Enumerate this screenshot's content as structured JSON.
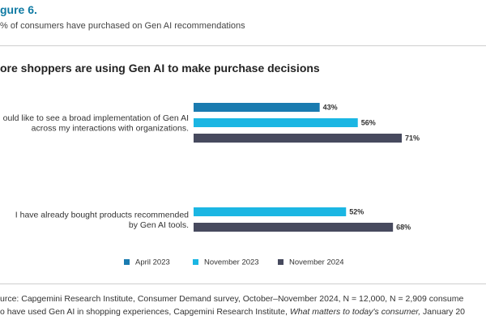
{
  "header": {
    "figure_label": "gure 6.",
    "subtitle": "% of consumers have purchased on Gen AI recommendations",
    "chart_title": "ore shoppers are using Gen AI to make purchase decisions"
  },
  "colors": {
    "april_2023": "#1a7bb0",
    "november_2023": "#1bb6e3",
    "november_2024": "#474a5e"
  },
  "chart_data": {
    "type": "bar",
    "orientation": "horizontal",
    "categories": [
      [
        "ould like to see a broad implementation of Gen AI",
        "across my interactions with organizations."
      ],
      [
        "I have already bought products recommended",
        "by Gen AI tools."
      ]
    ],
    "series": [
      {
        "name": "April 2023",
        "values": [
          43,
          null
        ]
      },
      {
        "name": "November 2023",
        "values": [
          56,
          52
        ]
      },
      {
        "name": "November 2024",
        "values": [
          71,
          68
        ]
      }
    ],
    "value_suffix": "%",
    "xlim": [
      0,
      100
    ],
    "grid": false,
    "legend_position": "bottom"
  },
  "source": {
    "line1": "urce: Capgemini Research Institute, Consumer Demand survey, October–November 2024, N = 12,000, N = 2,909 consume",
    "line2_prefix": "o have used Gen AI in shopping experiences, Capgemini Research Institute, ",
    "line2_italic": "What matters to today's consumer,",
    "line2_suffix": " January 20"
  }
}
